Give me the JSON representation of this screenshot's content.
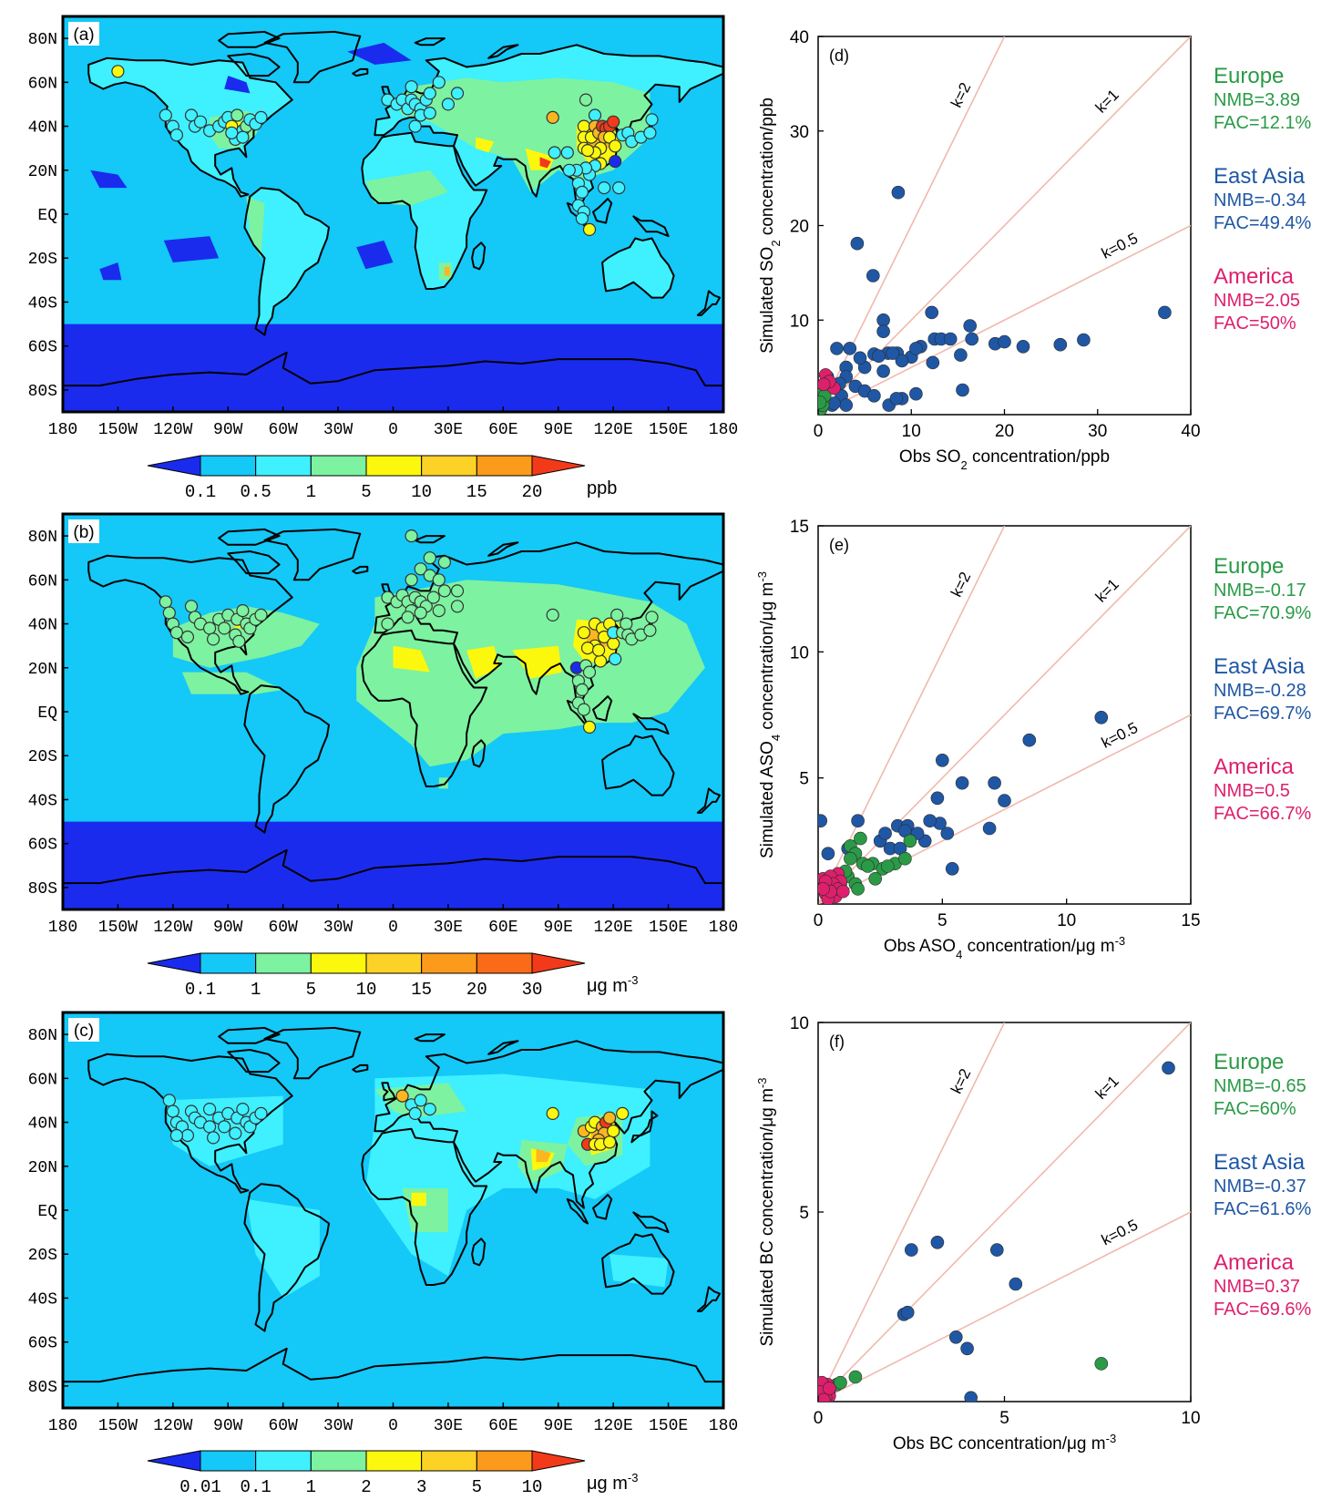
{
  "colors": {
    "europe": "#2a9a47",
    "east_asia": "#1f57a5",
    "america": "#de1f6c",
    "ref_line": "#f0b9ad",
    "ocean_low": "#1a2bee",
    "ocean": "#14c8f7",
    "land_low": "#3ff0ff",
    "green": "#7df2a0",
    "yellow": "#fbf80d",
    "orange": "#fcb61f",
    "red": "#f23a1a"
  },
  "maps": [
    {
      "panel_label": "(a)",
      "lat_ticks": [
        "80N",
        "60N",
        "40N",
        "20N",
        "EQ",
        "20S",
        "40S",
        "60S",
        "80S"
      ],
      "lon_ticks": [
        "180",
        "150W",
        "120W",
        "90W",
        "60W",
        "30W",
        "0",
        "30E",
        "60E",
        "90E",
        "120E",
        "150E",
        "180"
      ],
      "colorbar": {
        "levels": [
          "0.1",
          "0.5",
          "1",
          "5",
          "10",
          "15",
          "20"
        ],
        "unit": "ppb",
        "colors": [
          "#1a2bee",
          "#14c8f7",
          "#3ff0ff",
          "#7df2a0",
          "#fbf80d",
          "#fcd226",
          "#fc9a1c",
          "#f23a1a"
        ]
      }
    },
    {
      "panel_label": "(b)",
      "lat_ticks": [
        "80N",
        "60N",
        "40N",
        "20N",
        "EQ",
        "20S",
        "40S",
        "60S",
        "80S"
      ],
      "lon_ticks": [
        "180",
        "150W",
        "120W",
        "90W",
        "60W",
        "30W",
        "0",
        "30E",
        "60E",
        "90E",
        "120E",
        "150E",
        "180"
      ],
      "colorbar": {
        "levels": [
          "0.1",
          "1",
          "5",
          "10",
          "15",
          "20",
          "30"
        ],
        "unit": "μg m",
        "unit_sup": "-3",
        "colors": [
          "#1a2bee",
          "#14c8f7",
          "#7df2a0",
          "#fbf80d",
          "#fcd226",
          "#fc9a1c",
          "#fb6a17",
          "#f23a1a"
        ]
      }
    },
    {
      "panel_label": "(c)",
      "lat_ticks": [
        "80N",
        "60N",
        "40N",
        "20N",
        "EQ",
        "20S",
        "40S",
        "60S",
        "80S"
      ],
      "lon_ticks": [
        "180",
        "150W",
        "120W",
        "90W",
        "60W",
        "30W",
        "0",
        "30E",
        "60E",
        "90E",
        "120E",
        "150E",
        "180"
      ],
      "colorbar": {
        "levels": [
          "0.01",
          "0.1",
          "1",
          "2",
          "3",
          "5",
          "10"
        ],
        "unit": "μg m",
        "unit_sup": "-3",
        "colors": [
          "#1a2bee",
          "#14c8f7",
          "#3ff0ff",
          "#7df2a0",
          "#fbf80d",
          "#fcd226",
          "#fc9a1c",
          "#f23a1a"
        ]
      }
    }
  ],
  "chart_data": [
    {
      "type": "scatter",
      "panel_label": "(d)",
      "xlabel": "Obs SO",
      "xlabel_sub": "2",
      "xlabel_tail": " concentration/ppb",
      "ylabel": "Simulated SO",
      "ylabel_sub": "2",
      "ylabel_tail": " concentration/ppb",
      "xlim": [
        0,
        40
      ],
      "ylim": [
        0,
        40
      ],
      "xticks": [
        0,
        10,
        20,
        30,
        40
      ],
      "yticks": [
        10,
        20,
        30,
        40
      ],
      "ref_lines": [
        {
          "label": "k=2",
          "slope": 2
        },
        {
          "label": "k=1",
          "slope": 1
        },
        {
          "label": "k=0.5",
          "slope": 0.5
        }
      ],
      "series": [
        {
          "name": "East Asia",
          "stats": [
            "NMB=-0.34",
            "FAC=49.4%"
          ],
          "points": [
            [
              8.6,
              23.5
            ],
            [
              4.2,
              18.1
            ],
            [
              5.9,
              14.7
            ],
            [
              7,
              10
            ],
            [
              12.2,
              10.8
            ],
            [
              16.3,
              9.4
            ],
            [
              37.2,
              10.8
            ],
            [
              2,
              7
            ],
            [
              3.4,
              7
            ],
            [
              7,
              8.8
            ],
            [
              8.5,
              6.5
            ],
            [
              10,
              6.1
            ],
            [
              11,
              7.2
            ],
            [
              12.5,
              8
            ],
            [
              13.2,
              8
            ],
            [
              14.2,
              8
            ],
            [
              16.5,
              8
            ],
            [
              19,
              7.5
            ],
            [
              20,
              7.7
            ],
            [
              22,
              7.2
            ],
            [
              26,
              7.4
            ],
            [
              28.5,
              7.9
            ],
            [
              6,
              6.4
            ],
            [
              7.5,
              6.5
            ],
            [
              9,
              5.7
            ],
            [
              5,
              5
            ],
            [
              3,
              5
            ],
            [
              3,
              4
            ],
            [
              4,
              3
            ],
            [
              5,
              2.5
            ],
            [
              6,
              2
            ],
            [
              7.6,
              1
            ],
            [
              9,
              1.7
            ],
            [
              10.5,
              2.2
            ],
            [
              15.5,
              2.6
            ],
            [
              12.3,
              5.5
            ],
            [
              2.5,
              2
            ],
            [
              3,
              1
            ],
            [
              1.5,
              1
            ],
            [
              1,
              4
            ],
            [
              1.7,
              1.2
            ],
            [
              6.5,
              6.2
            ],
            [
              8,
              6.5
            ],
            [
              10.5,
              7
            ],
            [
              4.5,
              6
            ],
            [
              2.3,
              3.3
            ],
            [
              7,
              4.6
            ],
            [
              8.4,
              1.7
            ],
            [
              15.3,
              6.3
            ]
          ]
        },
        {
          "name": "Europe",
          "stats": [
            "NMB=3.89",
            "FAC=12.1%"
          ],
          "points": [
            [
              0.4,
              2.5
            ],
            [
              0.6,
              1.5
            ],
            [
              0.3,
              0.6
            ],
            [
              0.5,
              1
            ],
            [
              0.7,
              2
            ],
            [
              0.2,
              1.3
            ]
          ]
        },
        {
          "name": "America",
          "stats": [
            "NMB=2.05",
            "FAC=50%"
          ],
          "points": [
            [
              0.8,
              4.2
            ],
            [
              1.7,
              2.8
            ],
            [
              1.2,
              3.5
            ],
            [
              0.6,
              3.2
            ]
          ]
        }
      ]
    },
    {
      "type": "scatter",
      "panel_label": "(e)",
      "xlabel": "Obs ASO",
      "xlabel_sub": "4",
      "xlabel_tail": " concentration/μg m",
      "xlabel_sup": "-3",
      "ylabel": "Simulated ASO",
      "ylabel_sub": "4",
      "ylabel_tail": " concentration/μg m",
      "ylabel_sup": "-3",
      "xlim": [
        0,
        15
      ],
      "ylim": [
        0,
        15
      ],
      "xticks": [
        0,
        5,
        10,
        15
      ],
      "yticks": [
        5,
        10,
        15
      ],
      "ref_lines": [
        {
          "label": "k=2",
          "slope": 2
        },
        {
          "label": "k=1",
          "slope": 1
        },
        {
          "label": "k=0.5",
          "slope": 0.5
        }
      ],
      "series": [
        {
          "name": "East Asia",
          "stats": [
            "NMB=-0.28",
            "FAC=69.7%"
          ],
          "points": [
            [
              11.4,
              7.4
            ],
            [
              8.5,
              6.5
            ],
            [
              5,
              5.7
            ],
            [
              4.8,
              4.2
            ],
            [
              5.8,
              4.8
            ],
            [
              7.1,
              4.8
            ],
            [
              7.5,
              4.1
            ],
            [
              6.9,
              3
            ],
            [
              5.2,
              2.8
            ],
            [
              5.4,
              1.4
            ],
            [
              4.9,
              3.2
            ],
            [
              4.5,
              3.3
            ],
            [
              3.2,
              3.1
            ],
            [
              2.5,
              2.5
            ],
            [
              2.9,
              2.2
            ],
            [
              3.6,
              3.1
            ],
            [
              3.3,
              2.2
            ],
            [
              1.6,
              3.3
            ],
            [
              0.1,
              3.3
            ],
            [
              0.4,
              2
            ],
            [
              1.2,
              2.2
            ],
            [
              2.7,
              2.8
            ],
            [
              4.3,
              2.5
            ],
            [
              3.5,
              2.9
            ],
            [
              4,
              2.8
            ]
          ]
        },
        {
          "name": "Europe",
          "stats": [
            "NMB=-0.17",
            "FAC=70.9%"
          ],
          "points": [
            [
              1.3,
              2.3
            ],
            [
              1.5,
              2
            ],
            [
              1.7,
              2.6
            ],
            [
              1.8,
              1.6
            ],
            [
              2.2,
              1.6
            ],
            [
              2.6,
              1.4
            ],
            [
              3.1,
              1.6
            ],
            [
              3.7,
              2.5
            ],
            [
              1.2,
              1.1
            ],
            [
              1.5,
              0.8
            ],
            [
              2,
              1.5
            ],
            [
              2.8,
              1.5
            ],
            [
              1.3,
              1.8
            ],
            [
              1.6,
              0.6
            ],
            [
              2.3,
              1
            ],
            [
              1.1,
              1.3
            ],
            [
              0.9,
              0.8
            ],
            [
              3.5,
              1.8
            ]
          ]
        },
        {
          "name": "America",
          "stats": [
            "NMB=0.5",
            "FAC=66.7%"
          ],
          "points": [
            [
              0.2,
              1
            ],
            [
              0.4,
              0.7
            ],
            [
              0.6,
              0.6
            ],
            [
              0.8,
              1.2
            ],
            [
              0.3,
              0.4
            ],
            [
              0.7,
              0.3
            ],
            [
              0.5,
              1.1
            ],
            [
              0.9,
              0.9
            ],
            [
              0.6,
              0.8
            ],
            [
              0.4,
              0.2
            ],
            [
              0.8,
              0.6
            ],
            [
              1,
              0.5
            ],
            [
              0.3,
              0.9
            ],
            [
              0.5,
              0.5
            ],
            [
              0.2,
              0.6
            ]
          ]
        }
      ]
    },
    {
      "type": "scatter",
      "panel_label": "(f)",
      "xlabel": "Obs BC concentration/μg m",
      "xlabel_sup": "-3",
      "ylabel": "Simulated BC concentration/μg m",
      "ylabel_sup": "-3",
      "xlim": [
        0,
        10
      ],
      "ylim": [
        0,
        10
      ],
      "xticks": [
        0,
        5,
        10
      ],
      "yticks": [
        5,
        10
      ],
      "ref_lines": [
        {
          "label": "k=2",
          "slope": 2
        },
        {
          "label": "k=1",
          "slope": 1
        },
        {
          "label": "k=0.5",
          "slope": 0.5
        }
      ],
      "series": [
        {
          "name": "East Asia",
          "stats": [
            "NMB=-0.37",
            "FAC=61.6%"
          ],
          "points": [
            [
              9.4,
              8.8
            ],
            [
              2.5,
              4
            ],
            [
              3.2,
              4.2
            ],
            [
              4.8,
              4
            ],
            [
              5.3,
              3.1
            ],
            [
              2.3,
              2.3
            ],
            [
              2.4,
              2.35
            ],
            [
              3.7,
              1.7
            ],
            [
              4,
              1.4
            ],
            [
              4.1,
              0.1
            ]
          ]
        },
        {
          "name": "Europe",
          "stats": [
            "NMB=-0.65",
            "FAC=60%"
          ],
          "points": [
            [
              7.6,
              1
            ],
            [
              1,
              0.65
            ],
            [
              0.5,
              0.45
            ],
            [
              0.3,
              0.3
            ],
            [
              0.6,
              0.5
            ]
          ]
        },
        {
          "name": "America",
          "stats": [
            "NMB=0.37",
            "FAC=69.6%"
          ],
          "points": [
            [
              0.1,
              0.1
            ],
            [
              0.15,
              0.3
            ],
            [
              0.2,
              0.2
            ],
            [
              0.25,
              0.45
            ],
            [
              0.3,
              0.15
            ],
            [
              0.1,
              0.5
            ],
            [
              0.2,
              0.1
            ],
            [
              0.05,
              0.25
            ],
            [
              0.3,
              0.35
            ],
            [
              0.15,
              0.05
            ]
          ]
        }
      ]
    }
  ]
}
